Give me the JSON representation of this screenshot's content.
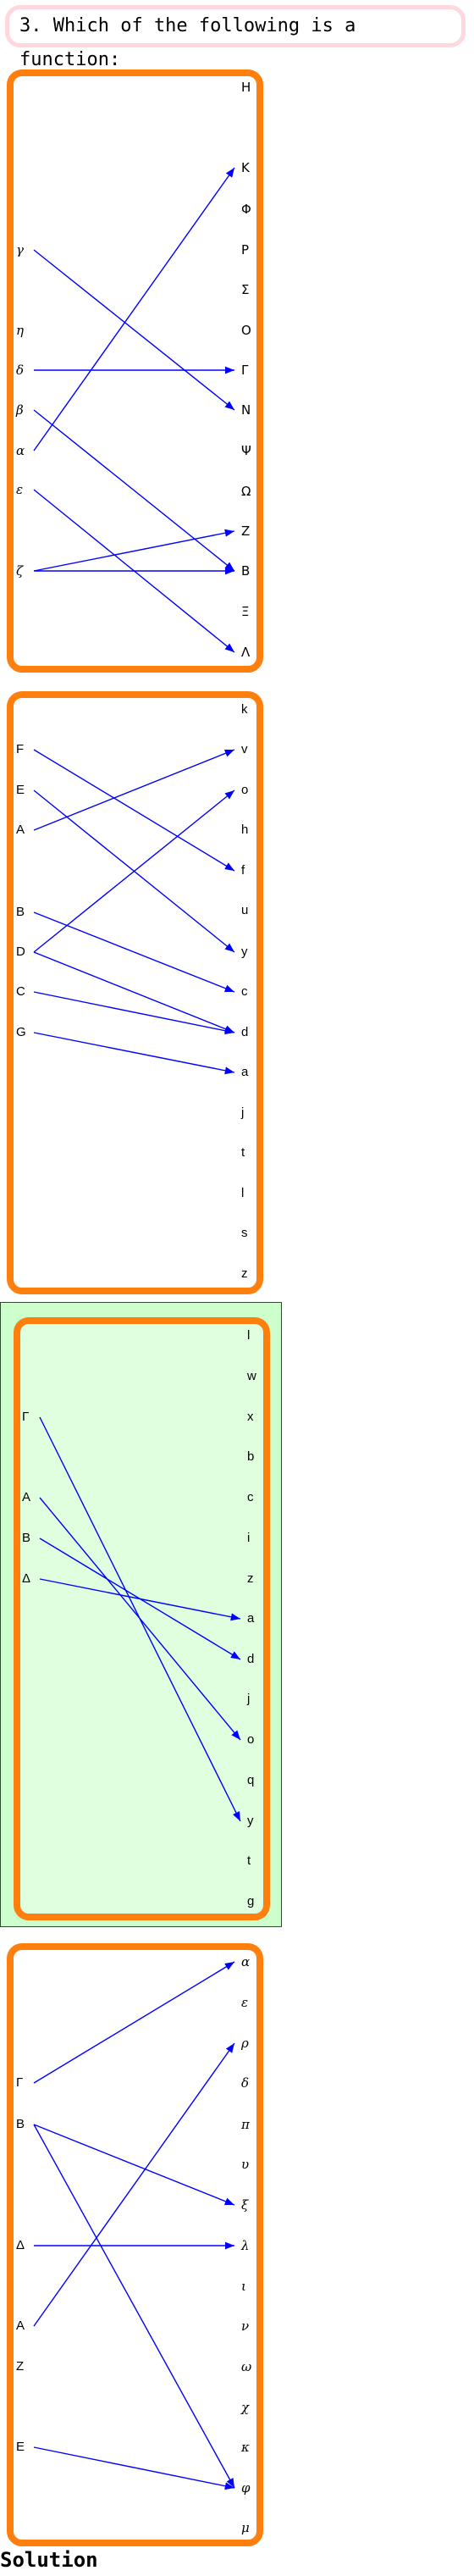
{
  "question": "3. Which of the following is a function:",
  "solution_label": "Solution",
  "colors": {
    "panel_border": "#ff7f0e",
    "arrow": "#0000ff",
    "highlight_bg": "#ccffcc",
    "question_border": "#ffd7dc"
  },
  "highlighted_panel": 3,
  "panels": [
    {
      "left": [
        "γ",
        "η",
        "δ",
        "β",
        "α",
        "ε",
        "ζ"
      ],
      "right": [
        "Η",
        "Κ",
        "Φ",
        "Ρ",
        "Σ",
        "Ο",
        "Γ",
        "Ν",
        "Ψ",
        "Ω",
        "Ζ",
        "Β",
        "Ξ",
        "Λ"
      ],
      "mappings": [
        [
          "γ",
          "Ν"
        ],
        [
          "δ",
          "Γ"
        ],
        [
          "β",
          "Β"
        ],
        [
          "α",
          "Κ"
        ],
        [
          "ε",
          "Λ"
        ],
        [
          "ζ",
          "Ζ"
        ],
        [
          "ζ",
          "Β"
        ]
      ]
    },
    {
      "left": [
        "F",
        "E",
        "A",
        "B",
        "D",
        "C",
        "G"
      ],
      "right": [
        "k",
        "v",
        "o",
        "h",
        "f",
        "u",
        "y",
        "c",
        "d",
        "a",
        "j",
        "t",
        "l",
        "s",
        "z"
      ],
      "mappings": [
        [
          "F",
          "f"
        ],
        [
          "E",
          "y"
        ],
        [
          "A",
          "v"
        ],
        [
          "B",
          "c"
        ],
        [
          "D",
          "o"
        ],
        [
          "D",
          "d"
        ],
        [
          "C",
          "d"
        ],
        [
          "G",
          "a"
        ]
      ]
    },
    {
      "left": [
        "Γ",
        "A",
        "B",
        "Δ"
      ],
      "right": [
        "l",
        "w",
        "x",
        "b",
        "c",
        "i",
        "z",
        "a",
        "d",
        "j",
        "o",
        "q",
        "y",
        "t",
        "g"
      ],
      "mappings": [
        [
          "Γ",
          "y"
        ],
        [
          "A",
          "o"
        ],
        [
          "B",
          "d"
        ],
        [
          "Δ",
          "a"
        ]
      ]
    },
    {
      "left": [
        "Γ",
        "B",
        "Δ",
        "A",
        "Z",
        "E"
      ],
      "right": [
        "α",
        "ε",
        "ρ",
        "δ",
        "π",
        "υ",
        "ξ",
        "λ",
        "ι",
        "ν",
        "ω",
        "χ",
        "κ",
        "φ",
        "μ"
      ],
      "mappings": [
        [
          "Γ",
          "α"
        ],
        [
          "B",
          "ξ"
        ],
        [
          "B",
          "φ"
        ],
        [
          "Δ",
          "λ"
        ],
        [
          "A",
          "ρ"
        ],
        [
          "E",
          "φ"
        ]
      ]
    }
  ]
}
